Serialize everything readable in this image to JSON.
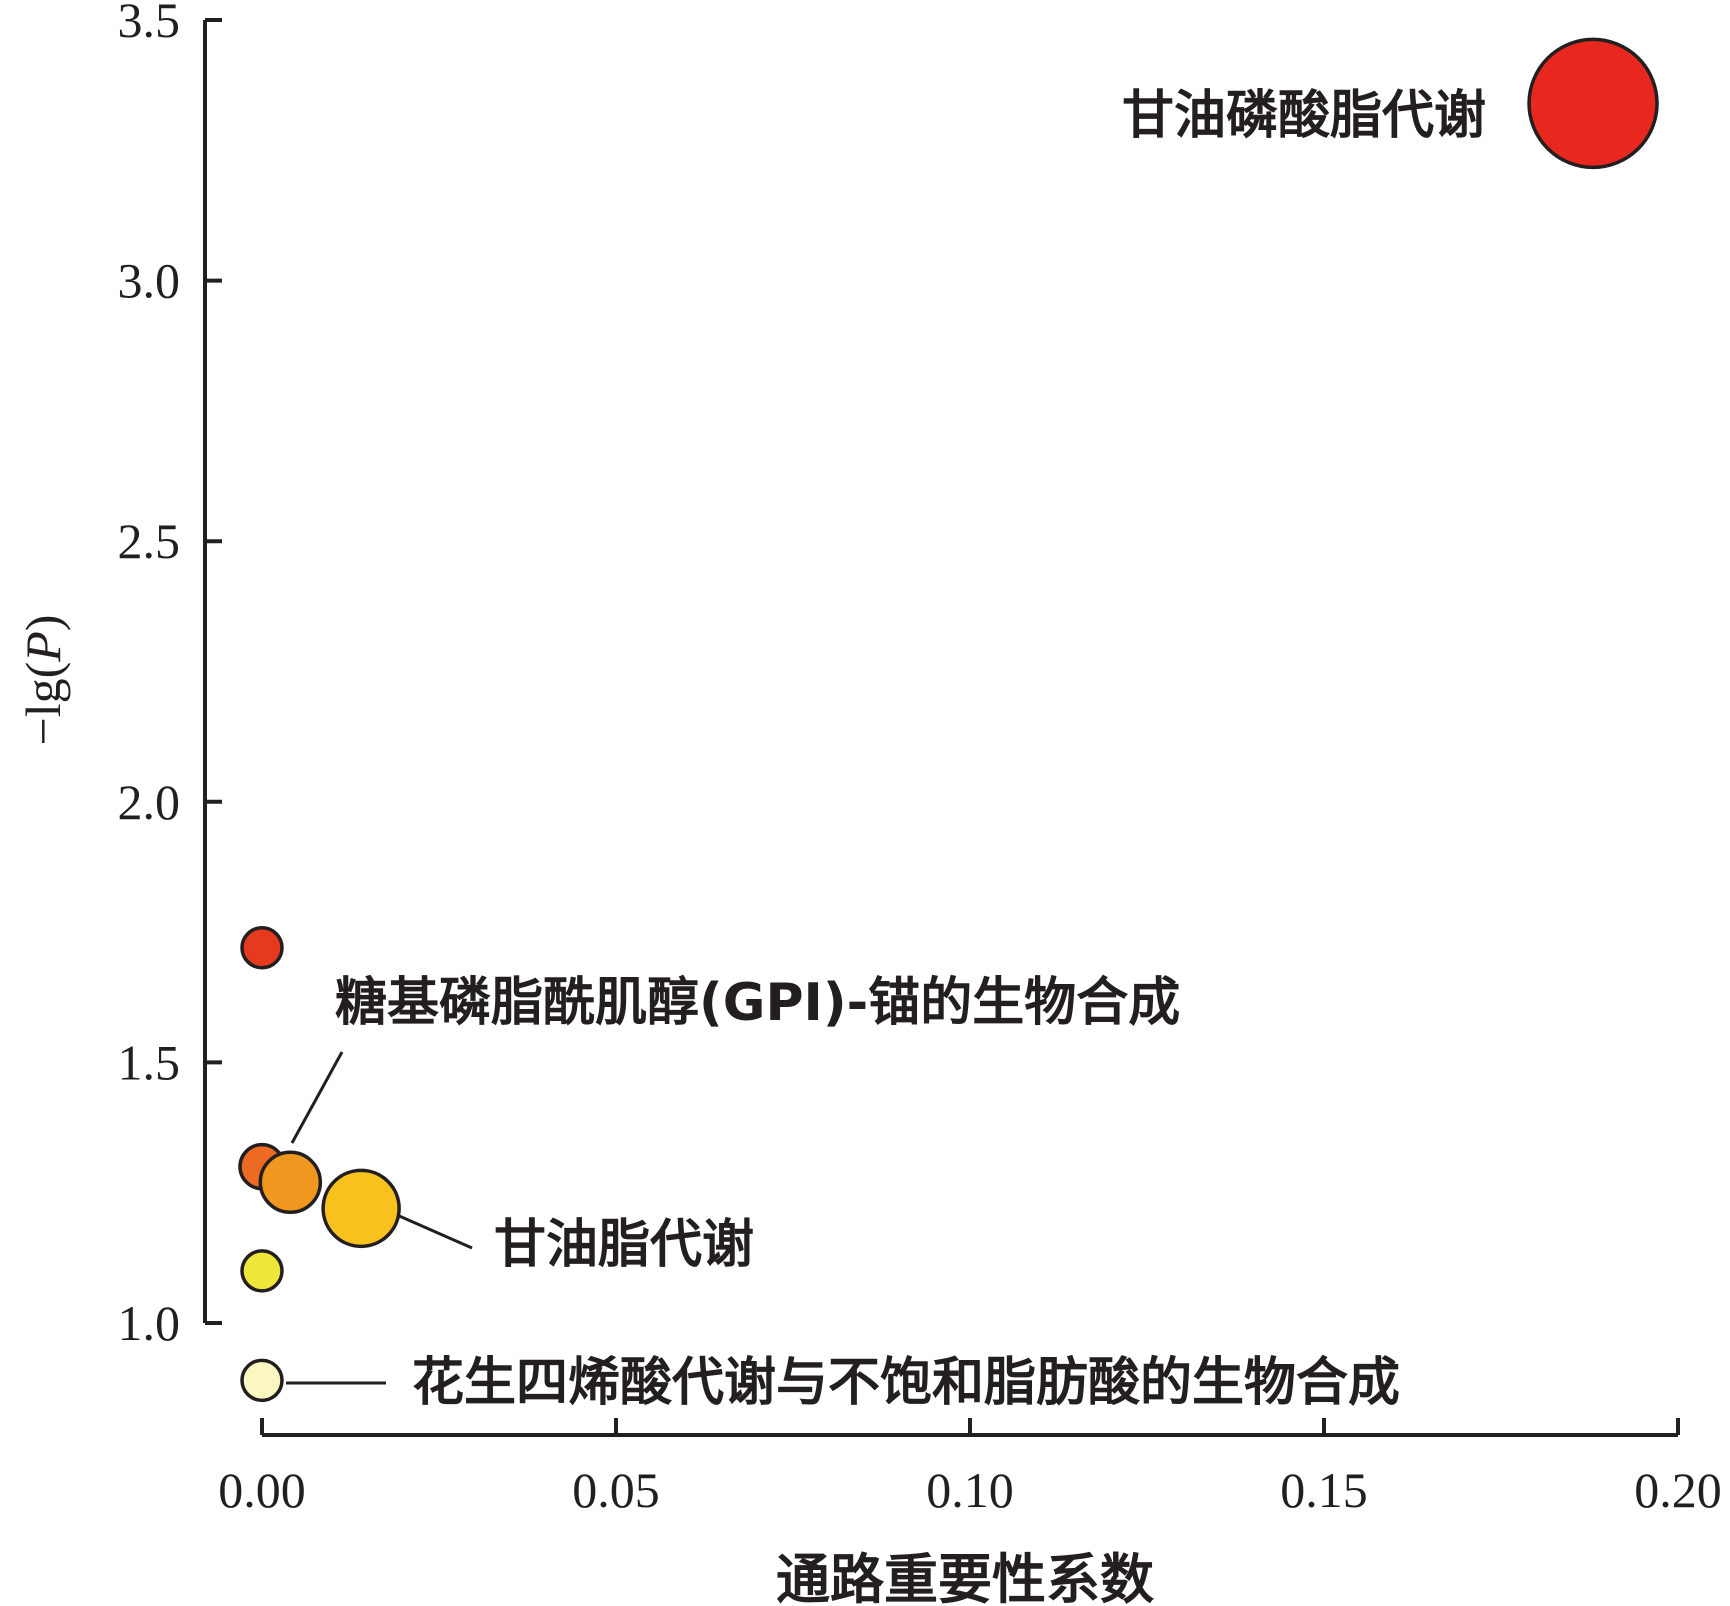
{
  "chart_data": {
    "type": "scatter",
    "xlabel": "通路重要性系数",
    "ylabel_prefix": "−lg(",
    "ylabel_var": "P",
    "ylabel_suffix": ")",
    "xlim": [
      0,
      0.2
    ],
    "ylim": [
      0.8,
      3.5
    ],
    "x_ticks": [
      {
        "value": 0,
        "label": "0.00"
      },
      {
        "value": 0.05,
        "label": "0.05"
      },
      {
        "value": 0.1,
        "label": "0.10"
      },
      {
        "value": 0.15,
        "label": "0.15"
      },
      {
        "value": 0.2,
        "label": "0.20"
      }
    ],
    "y_ticks": [
      {
        "value": 1.0,
        "label": "1.0"
      },
      {
        "value": 1.5,
        "label": "1.5"
      },
      {
        "value": 2.0,
        "label": "2.0"
      },
      {
        "value": 2.5,
        "label": "2.5"
      },
      {
        "value": 3.0,
        "label": "3.0"
      },
      {
        "value": 3.5,
        "label": "3.5"
      }
    ],
    "points": [
      {
        "x": 0.188,
        "y": 3.34,
        "size": 64,
        "color": "#e8281e"
      },
      {
        "x": 0.0,
        "y": 1.72,
        "size": 20,
        "color": "#e63a1f"
      },
      {
        "x": 0.0,
        "y": 1.3,
        "size": 22,
        "color": "#ec6a22"
      },
      {
        "x": 0.004,
        "y": 1.27,
        "size": 30,
        "color": "#f0971f"
      },
      {
        "x": 0.014,
        "y": 1.22,
        "size": 38,
        "color": "#f8c11e"
      },
      {
        "x": 0.0,
        "y": 1.1,
        "size": 20,
        "color": "#eee73a"
      },
      {
        "x": 0.0,
        "y": 0.89,
        "size": 20,
        "color": "#fbf7c2"
      }
    ],
    "annotations": [
      {
        "text": "甘油磷酸脂代谢"
      },
      {
        "text": "糖基磷脂酰肌醇(GPI)-锚的生物合成"
      },
      {
        "text": "甘油脂代谢"
      },
      {
        "text": "花生四烯酸代谢与不饱和脂肪酸的生物合成"
      }
    ]
  }
}
